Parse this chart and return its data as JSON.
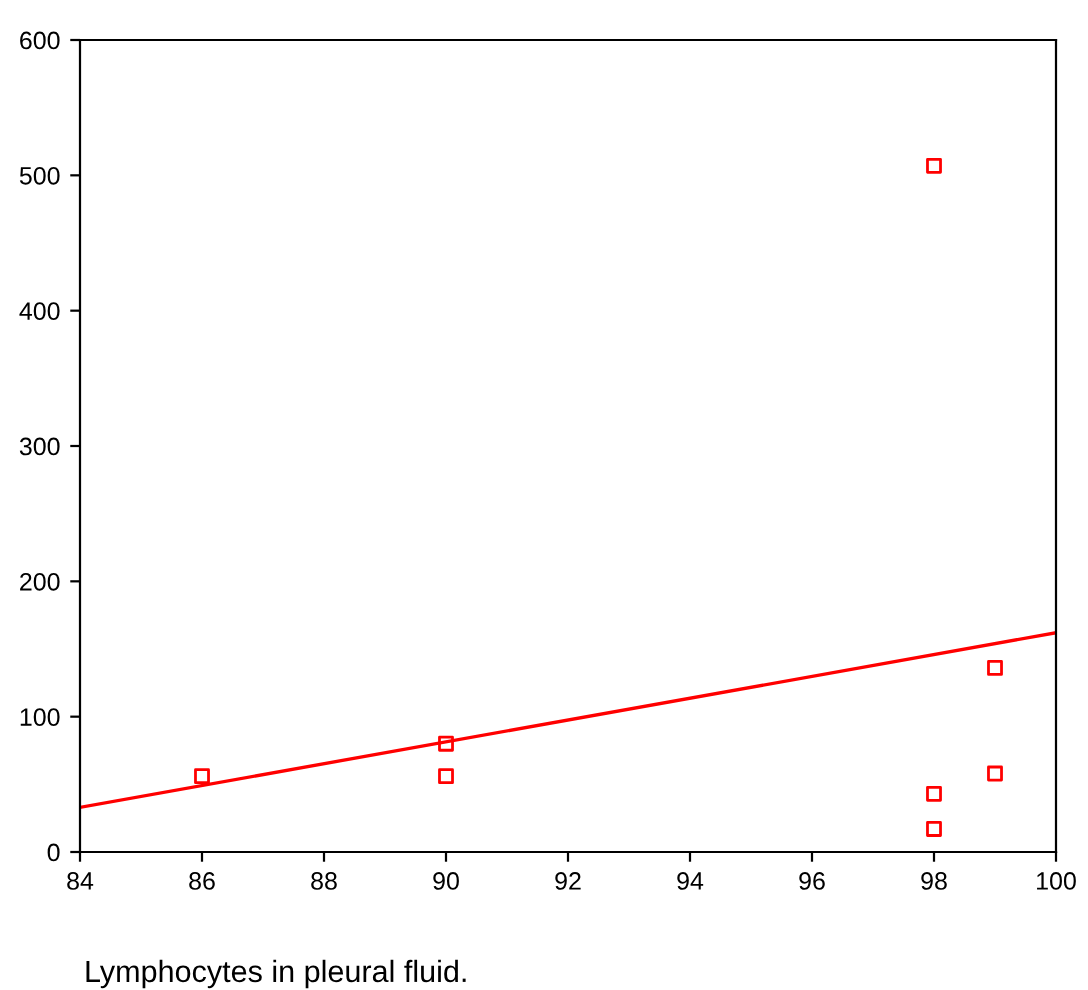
{
  "chart_data": {
    "type": "scatter",
    "annotations": [
      "Lymphocytes in pleural fluid."
    ],
    "xlim": [
      84,
      100
    ],
    "xticks": [
      84,
      86,
      88,
      90,
      92,
      94,
      96,
      98,
      100
    ],
    "ylim": [
      0,
      600
    ],
    "yticks": [
      0,
      100,
      200,
      300,
      400,
      500,
      600
    ],
    "grid": false,
    "marker": "square",
    "series": [
      {
        "color": "#ff0000",
        "x": [
          86,
          90,
          90,
          98,
          98,
          98,
          99,
          99
        ],
        "values": [
          56,
          80,
          56,
          507,
          43,
          17,
          136,
          58
        ]
      },
      {
        "type": "line",
        "color": "#ff0000",
        "x": [
          84,
          100
        ],
        "values": [
          33,
          162
        ],
        "marker": "none"
      }
    ]
  }
}
